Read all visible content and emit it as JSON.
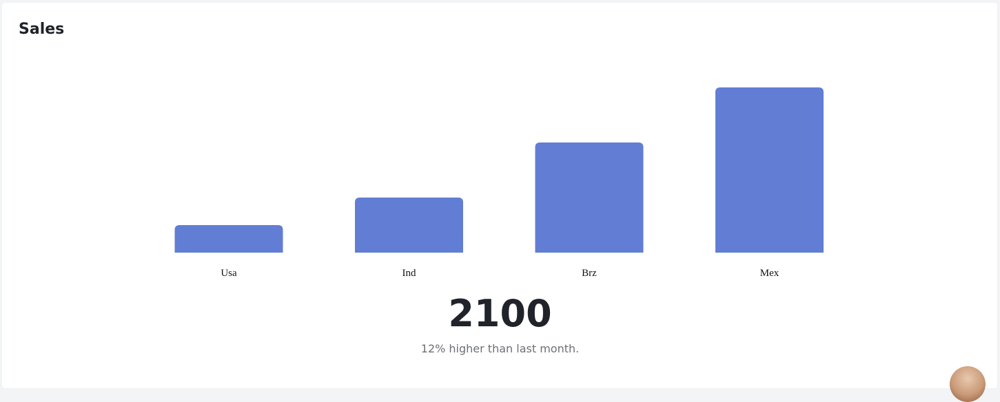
{
  "card": {
    "title": "Sales"
  },
  "chart_data": {
    "type": "bar",
    "categories": [
      "Usa",
      "Ind",
      "Brz",
      "Mex"
    ],
    "values": [
      10,
      20,
      40,
      60
    ],
    "title": "",
    "xlabel": "",
    "ylabel": "",
    "ylim": [
      0,
      60
    ],
    "grid": false,
    "legend": "none",
    "bar_color": "#617ed4"
  },
  "summary": {
    "value": "2100",
    "caption": "12% higher than last month."
  }
}
